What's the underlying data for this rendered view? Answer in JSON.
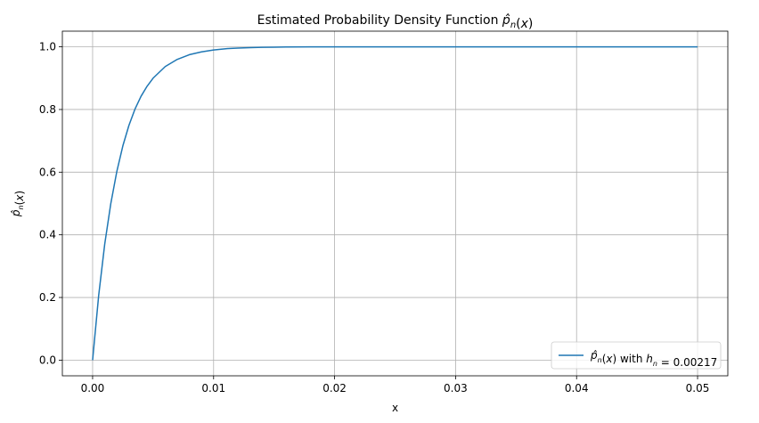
{
  "chart_data": {
    "type": "line",
    "title_parts": [
      {
        "t": "Estimated Probability Density Function ",
        "style": "normal"
      },
      {
        "t": "p",
        "style": "italic",
        "hat": true
      },
      {
        "t": "n",
        "style": "italic",
        "sub": true
      },
      {
        "t": "(",
        "style": "normal"
      },
      {
        "t": "x",
        "style": "italic"
      },
      {
        "t": ")",
        "style": "normal"
      }
    ],
    "xlabel": "x",
    "ylabel_parts": [
      {
        "t": "p",
        "style": "italic",
        "hat": true
      },
      {
        "t": "n",
        "style": "italic",
        "sub": true
      },
      {
        "t": "(",
        "style": "normal"
      },
      {
        "t": "x",
        "style": "italic"
      },
      {
        "t": ")",
        "style": "normal"
      }
    ],
    "xlim": [
      -0.0025,
      0.0525
    ],
    "ylim": [
      -0.05,
      1.05
    ],
    "xticks": [
      0.0,
      0.01,
      0.02,
      0.03,
      0.04,
      0.05
    ],
    "xtick_labels": [
      "0.00",
      "0.01",
      "0.02",
      "0.03",
      "0.04",
      "0.05"
    ],
    "yticks": [
      0.0,
      0.2,
      0.4,
      0.6,
      0.8,
      1.0
    ],
    "ytick_labels": [
      "0.0",
      "0.2",
      "0.4",
      "0.6",
      "0.8",
      "1.0"
    ],
    "grid": true,
    "legend_placement": "lower right",
    "series": [
      {
        "name_parts": [
          {
            "t": "p",
            "style": "italic",
            "hat": true
          },
          {
            "t": "n",
            "style": "italic",
            "sub": true
          },
          {
            "t": "(",
            "style": "normal"
          },
          {
            "t": "x",
            "style": "italic"
          },
          {
            "t": ") with ",
            "style": "normal"
          },
          {
            "t": "h",
            "style": "italic"
          },
          {
            "t": "n",
            "style": "italic",
            "sub": true
          },
          {
            "t": " = 0.00217",
            "style": "normal"
          }
        ],
        "color": "#1f77b4",
        "x": [
          0.0,
          0.0005,
          0.001,
          0.0015,
          0.002,
          0.0025,
          0.003,
          0.0035,
          0.004,
          0.0045,
          0.005,
          0.006,
          0.007,
          0.008,
          0.009,
          0.01,
          0.011,
          0.012,
          0.013,
          0.014,
          0.015,
          0.016,
          0.018,
          0.02,
          0.025,
          0.03,
          0.035,
          0.04,
          0.045,
          0.05
        ],
        "y": [
          0.0,
          0.206,
          0.37,
          0.499,
          0.602,
          0.684,
          0.749,
          0.801,
          0.842,
          0.874,
          0.9,
          0.937,
          0.96,
          0.975,
          0.984,
          0.99,
          0.994,
          0.996,
          0.9975,
          0.9984,
          0.999,
          0.9994,
          0.9998,
          0.9999,
          1.0,
          1.0,
          1.0,
          1.0,
          1.0,
          1.0
        ]
      }
    ]
  }
}
